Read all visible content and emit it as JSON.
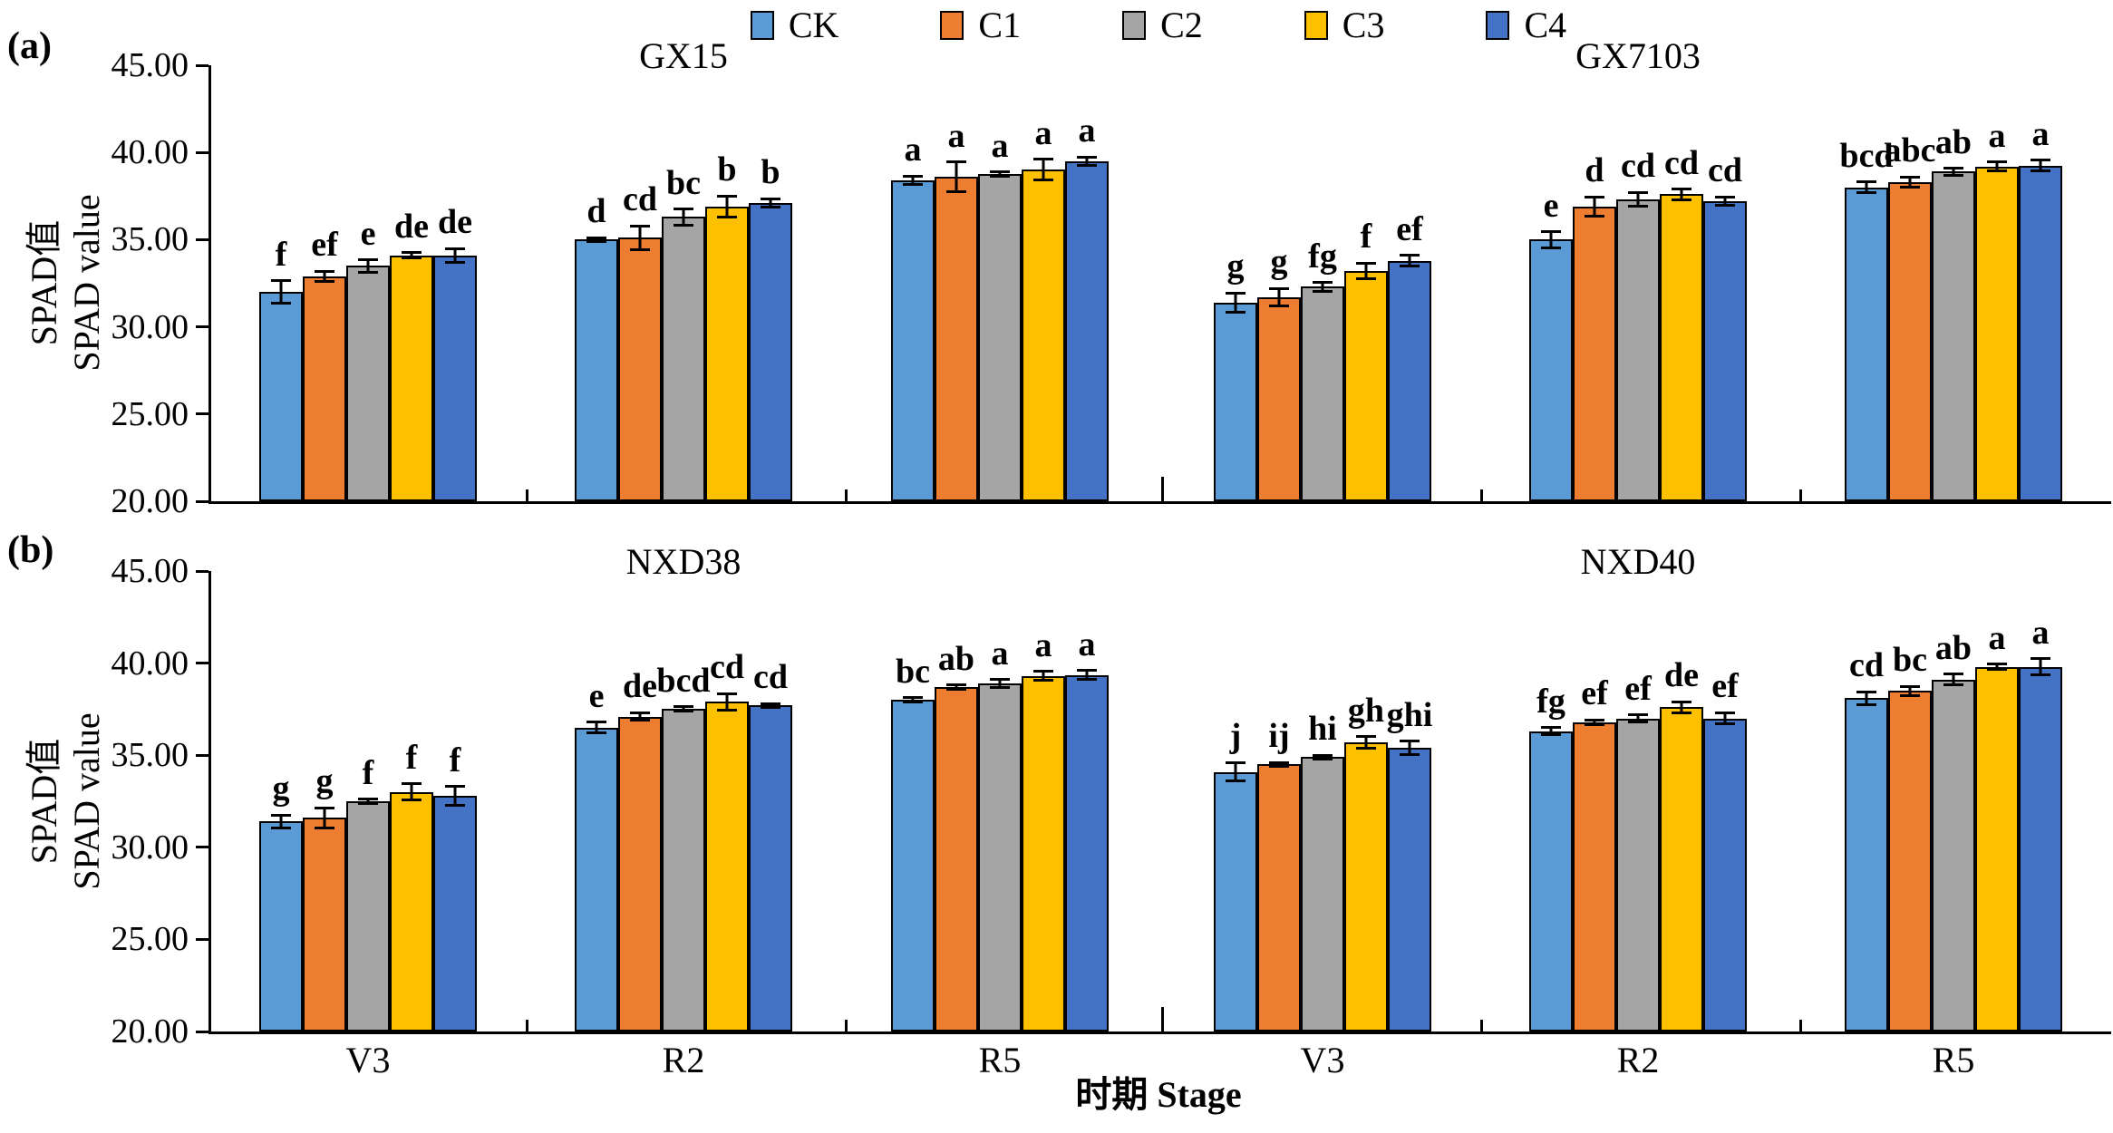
{
  "figure": {
    "panel_a_label": "(a)",
    "panel_b_label": "(b)",
    "y_axis_label_cn": "SPAD值",
    "y_axis_label_en": "SPAD value",
    "x_axis_label": "时期 Stage"
  },
  "chart_data": {
    "type": "bar",
    "title": "",
    "xlabel": "时期 Stage",
    "ylabel": "SPAD值 SPAD value",
    "ylim": [
      20,
      45
    ],
    "ytick_step": 5,
    "ytick_format": "0.00",
    "grid": false,
    "legend_position": "top-center",
    "error_bars": true,
    "series": [
      {
        "name": "CK",
        "color": "#5B9BD5"
      },
      {
        "name": "C1",
        "color": "#ED7D31"
      },
      {
        "name": "C2",
        "color": "#A5A5A5"
      },
      {
        "name": "C3",
        "color": "#FFC000"
      },
      {
        "name": "C4",
        "color": "#4472C4"
      }
    ],
    "stages": [
      "V3",
      "R2",
      "R5"
    ],
    "panels": [
      {
        "id": "a",
        "label": "(a)",
        "show_stage_labels": false,
        "subpanels": [
          {
            "title": "GX15",
            "groups": [
              {
                "stage": "V3",
                "values": [
                  32.0,
                  32.9,
                  33.5,
                  34.1,
                  34.1
                ],
                "errors": [
                  0.65,
                  0.3,
                  0.35,
                  0.15,
                  0.4
                ],
                "sig_letters": [
                  "f",
                  "ef",
                  "e",
                  "de",
                  "de"
                ]
              },
              {
                "stage": "R2",
                "values": [
                  35.0,
                  35.1,
                  36.3,
                  36.9,
                  37.1
                ],
                "errors": [
                  0.12,
                  0.7,
                  0.45,
                  0.6,
                  0.25
                ],
                "sig_letters": [
                  "d",
                  "cd",
                  "bc",
                  "b",
                  "b"
                ]
              },
              {
                "stage": "R5",
                "values": [
                  38.4,
                  38.6,
                  38.75,
                  39.0,
                  39.5
                ],
                "errors": [
                  0.25,
                  0.85,
                  0.12,
                  0.6,
                  0.25
                ],
                "sig_letters": [
                  "a",
                  "a",
                  "a",
                  "a",
                  "a"
                ]
              }
            ]
          },
          {
            "title": "GX7103",
            "groups": [
              {
                "stage": "V3",
                "values": [
                  31.4,
                  31.7,
                  32.3,
                  33.2,
                  33.8
                ],
                "errors": [
                  0.55,
                  0.5,
                  0.25,
                  0.45,
                  0.3
                ],
                "sig_letters": [
                  "g",
                  "g",
                  "fg",
                  "f",
                  "ef"
                ]
              },
              {
                "stage": "R2",
                "values": [
                  35.0,
                  36.9,
                  37.3,
                  37.6,
                  37.2
                ],
                "errors": [
                  0.45,
                  0.55,
                  0.4,
                  0.3,
                  0.25
                ],
                "sig_letters": [
                  "e",
                  "d",
                  "cd",
                  "cd",
                  "cd"
                ]
              },
              {
                "stage": "R5",
                "values": [
                  38.0,
                  38.3,
                  38.9,
                  39.2,
                  39.25
                ],
                "errors": [
                  0.3,
                  0.3,
                  0.2,
                  0.25,
                  0.3
                ],
                "sig_letters": [
                  "bcd",
                  "abc",
                  "ab",
                  "a",
                  "a"
                ]
              }
            ]
          }
        ]
      },
      {
        "id": "b",
        "label": "(b)",
        "show_stage_labels": true,
        "subpanels": [
          {
            "title": "NXD38",
            "groups": [
              {
                "stage": "V3",
                "values": [
                  31.4,
                  31.6,
                  32.5,
                  33.0,
                  32.8
                ],
                "errors": [
                  0.35,
                  0.55,
                  0.12,
                  0.45,
                  0.5
                ],
                "sig_letters": [
                  "g",
                  "g",
                  "f",
                  "f",
                  "f"
                ]
              },
              {
                "stage": "R2",
                "values": [
                  36.5,
                  37.1,
                  37.5,
                  37.9,
                  37.7
                ],
                "errors": [
                  0.3,
                  0.2,
                  0.12,
                  0.45,
                  0.1
                ],
                "sig_letters": [
                  "e",
                  "de",
                  "bcd",
                  "cd",
                  "cd"
                ]
              },
              {
                "stage": "R5",
                "values": [
                  38.0,
                  38.7,
                  38.9,
                  39.3,
                  39.35
                ],
                "errors": [
                  0.12,
                  0.1,
                  0.2,
                  0.25,
                  0.25
                ],
                "sig_letters": [
                  "bc",
                  "ab",
                  "a",
                  "a",
                  "a"
                ]
              }
            ]
          },
          {
            "title": "NXD40",
            "groups": [
              {
                "stage": "V3",
                "values": [
                  34.1,
                  34.5,
                  34.9,
                  35.7,
                  35.4
                ],
                "errors": [
                  0.5,
                  0.1,
                  0.1,
                  0.3,
                  0.35
                ],
                "sig_letters": [
                  "j",
                  "ij",
                  "hi",
                  "gh",
                  "ghi"
                ]
              },
              {
                "stage": "R2",
                "values": [
                  36.3,
                  36.8,
                  37.0,
                  37.6,
                  37.0
                ],
                "errors": [
                  0.2,
                  0.12,
                  0.2,
                  0.3,
                  0.3
                ],
                "sig_letters": [
                  "fg",
                  "ef",
                  "ef",
                  "de",
                  "ef"
                ]
              },
              {
                "stage": "R5",
                "values": [
                  38.1,
                  38.5,
                  39.1,
                  39.8,
                  39.8
                ],
                "errors": [
                  0.35,
                  0.25,
                  0.3,
                  0.15,
                  0.45
                ],
                "sig_letters": [
                  "cd",
                  "bc",
                  "ab",
                  "a",
                  "a"
                ]
              }
            ]
          }
        ]
      }
    ]
  }
}
